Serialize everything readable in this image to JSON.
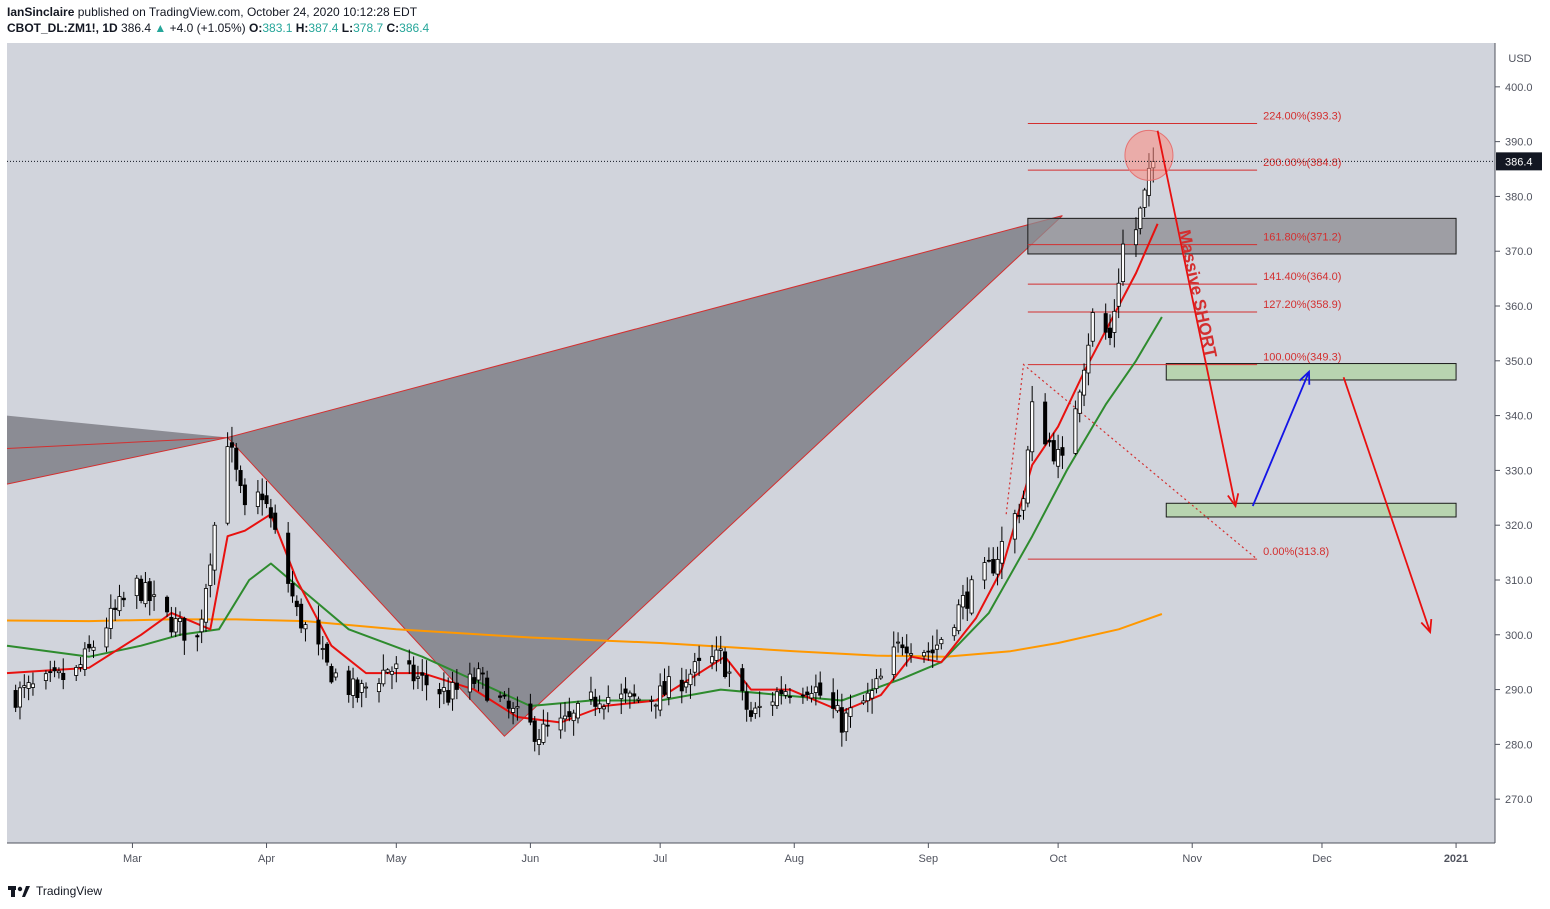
{
  "header": {
    "author": "IanSinclaire",
    "published": "published on TradingView.com, October 24, 2020 10:12:28 EDT",
    "symbol": "CBOT_DL:ZM1!, 1D",
    "last": "386.4",
    "change": "+4.0 (+1.05%)",
    "o_label": "O:",
    "o": "383.1",
    "h_label": "H:",
    "h": "387.4",
    "l_label": "L:",
    "l": "378.7",
    "c_label": "C:",
    "c": "386.4"
  },
  "footer": {
    "brand": "TradingView"
  },
  "colors": {
    "background": "#d1d4dc",
    "up_candle": "#ffffff",
    "down_candle": "#000000",
    "ema_fast": "#e8110f",
    "ema_mid": "#2e8b2e",
    "ema_slow": "#ff9800",
    "pattern_fill": "#7f7f87",
    "pattern_edge": "#d32f2f",
    "zone_green": "#b8d4b0",
    "fib": "#d32f2f",
    "short_arrow": "#e81010",
    "long_arrow": "#1414e6"
  },
  "chart_data": {
    "type": "candlestick",
    "title": "",
    "currency": "USD",
    "ylim": [
      262,
      408
    ],
    "y_ticks": [
      "270.0",
      "280.0",
      "290.0",
      "300.0",
      "310.0",
      "320.0",
      "330.0",
      "340.0",
      "350.0",
      "360.0",
      "370.0",
      "380.0",
      "390.0",
      "400.0"
    ],
    "x_ticks": [
      {
        "date": "2020-03-01",
        "label": "Mar"
      },
      {
        "date": "2020-04-01",
        "label": "Apr"
      },
      {
        "date": "2020-05-01",
        "label": "May"
      },
      {
        "date": "2020-06-01",
        "label": "Jun"
      },
      {
        "date": "2020-07-01",
        "label": "Jul"
      },
      {
        "date": "2020-08-01",
        "label": "Aug"
      },
      {
        "date": "2020-09-01",
        "label": "Sep"
      },
      {
        "date": "2020-10-01",
        "label": "Oct"
      },
      {
        "date": "2020-11-01",
        "label": "Nov"
      },
      {
        "date": "2020-12-01",
        "label": "Dec"
      },
      {
        "date": "2021-01-01",
        "label": "2021"
      }
    ],
    "x_range": [
      "2020-02-01",
      "2021-01-10"
    ],
    "last_price": 386.4,
    "close_points": [
      [
        "2020-02-03",
        289
      ],
      [
        "2020-02-10",
        291
      ],
      [
        "2020-02-17",
        293
      ],
      [
        "2020-02-24",
        302
      ],
      [
        "2020-03-02",
        309
      ],
      [
        "2020-03-09",
        303
      ],
      [
        "2020-03-16",
        299
      ],
      [
        "2020-03-20",
        320
      ],
      [
        "2020-03-23",
        336
      ],
      [
        "2020-03-27",
        322
      ],
      [
        "2020-03-31",
        326
      ],
      [
        "2020-04-03",
        318
      ],
      [
        "2020-04-08",
        304
      ],
      [
        "2020-04-15",
        294
      ],
      [
        "2020-04-22",
        289
      ],
      [
        "2020-04-29",
        294
      ],
      [
        "2020-05-06",
        292
      ],
      [
        "2020-05-13",
        289
      ],
      [
        "2020-05-20",
        292
      ],
      [
        "2020-05-27",
        286
      ],
      [
        "2020-06-03",
        282
      ],
      [
        "2020-06-10",
        284
      ],
      [
        "2020-06-17",
        289
      ],
      [
        "2020-06-24",
        288
      ],
      [
        "2020-07-01",
        289
      ],
      [
        "2020-07-08",
        293
      ],
      [
        "2020-07-15",
        296
      ],
      [
        "2020-07-22",
        285
      ],
      [
        "2020-07-29",
        290
      ],
      [
        "2020-08-05",
        291
      ],
      [
        "2020-08-12",
        284
      ],
      [
        "2020-08-19",
        289
      ],
      [
        "2020-08-26",
        299
      ],
      [
        "2020-09-02",
        297
      ],
      [
        "2020-09-09",
        306
      ],
      [
        "2020-09-16",
        313
      ],
      [
        "2020-09-23",
        325
      ],
      [
        "2020-09-25",
        341
      ],
      [
        "2020-09-29",
        335
      ],
      [
        "2020-10-02",
        331
      ],
      [
        "2020-10-06",
        346
      ],
      [
        "2020-10-09",
        358
      ],
      [
        "2020-10-13",
        354
      ],
      [
        "2020-10-16",
        371
      ],
      [
        "2020-10-19",
        374
      ],
      [
        "2020-10-21",
        380
      ],
      [
        "2020-10-23",
        386.4
      ]
    ],
    "series": [
      {
        "name": "",
        "role": "ema_fast",
        "points": [
          [
            "2020-02-01",
            293
          ],
          [
            "2020-02-20",
            294
          ],
          [
            "2020-03-03",
            300
          ],
          [
            "2020-03-10",
            304
          ],
          [
            "2020-03-19",
            301
          ],
          [
            "2020-03-23",
            318
          ],
          [
            "2020-03-27",
            319
          ],
          [
            "2020-04-02",
            322
          ],
          [
            "2020-04-08",
            310
          ],
          [
            "2020-04-16",
            298
          ],
          [
            "2020-04-24",
            293
          ],
          [
            "2020-05-07",
            293
          ],
          [
            "2020-05-19",
            290
          ],
          [
            "2020-05-29",
            285
          ],
          [
            "2020-06-08",
            284
          ],
          [
            "2020-06-18",
            287
          ],
          [
            "2020-06-30",
            288
          ],
          [
            "2020-07-08",
            292
          ],
          [
            "2020-07-16",
            296
          ],
          [
            "2020-07-22",
            290
          ],
          [
            "2020-07-31",
            290
          ],
          [
            "2020-08-12",
            286
          ],
          [
            "2020-08-21",
            289
          ],
          [
            "2020-08-28",
            296
          ],
          [
            "2020-09-04",
            295
          ],
          [
            "2020-09-12",
            303
          ],
          [
            "2020-09-18",
            312
          ],
          [
            "2020-09-25",
            331
          ],
          [
            "2020-10-01",
            338
          ],
          [
            "2020-10-07",
            348
          ],
          [
            "2020-10-13",
            357
          ],
          [
            "2020-10-19",
            366
          ],
          [
            "2020-10-24",
            375
          ]
        ]
      },
      {
        "name": "",
        "role": "ema_mid",
        "points": [
          [
            "2020-02-01",
            298
          ],
          [
            "2020-02-20",
            296
          ],
          [
            "2020-03-03",
            298
          ],
          [
            "2020-03-12",
            300
          ],
          [
            "2020-03-21",
            301
          ],
          [
            "2020-03-28",
            310
          ],
          [
            "2020-04-02",
            313
          ],
          [
            "2020-04-08",
            309
          ],
          [
            "2020-04-20",
            301
          ],
          [
            "2020-05-07",
            296
          ],
          [
            "2020-05-21",
            291
          ],
          [
            "2020-06-01",
            287
          ],
          [
            "2020-06-15",
            288
          ],
          [
            "2020-07-01",
            288
          ],
          [
            "2020-07-15",
            290
          ],
          [
            "2020-07-29",
            289
          ],
          [
            "2020-08-12",
            288
          ],
          [
            "2020-08-26",
            292
          ],
          [
            "2020-09-04",
            295
          ],
          [
            "2020-09-15",
            304
          ],
          [
            "2020-09-25",
            318
          ],
          [
            "2020-10-03",
            330
          ],
          [
            "2020-10-12",
            342
          ],
          [
            "2020-10-19",
            350
          ],
          [
            "2020-10-25",
            358
          ]
        ]
      },
      {
        "name": "",
        "role": "ema_slow",
        "points": [
          [
            "2020-02-01",
            302.6
          ],
          [
            "2020-02-20",
            302.5
          ],
          [
            "2020-03-10",
            302.8
          ],
          [
            "2020-03-25",
            302.8
          ],
          [
            "2020-04-10",
            302.5
          ],
          [
            "2020-05-01",
            301
          ],
          [
            "2020-06-01",
            299.5
          ],
          [
            "2020-07-01",
            298.5
          ],
          [
            "2020-08-01",
            297
          ],
          [
            "2020-08-20",
            296.2
          ],
          [
            "2020-09-05",
            296
          ],
          [
            "2020-09-20",
            297
          ],
          [
            "2020-10-01",
            298.5
          ],
          [
            "2020-10-15",
            301
          ],
          [
            "2020-10-25",
            303.8
          ]
        ]
      }
    ],
    "pattern": {
      "points": [
        [
          "2020-02-01",
          334
        ],
        [
          "2020-02-01",
          327.5
        ],
        [
          "2020-03-23",
          336
        ],
        [
          "2020-05-26",
          281.5
        ],
        [
          "2020-10-02",
          376.5
        ]
      ],
      "fill_left": [
        [
          "2020-02-01",
          340
        ],
        [
          "2020-03-23",
          336
        ],
        [
          "2020-02-01",
          327.5
        ]
      ],
      "fill_main": [
        [
          "2020-03-23",
          336
        ],
        [
          "2020-10-02",
          376.5
        ],
        [
          "2020-05-26",
          281.5
        ]
      ]
    },
    "zones": [
      {
        "name": "prz",
        "x": [
          "2020-09-24",
          "2021-01-01"
        ],
        "y": [
          369.5,
          376
        ]
      },
      {
        "name": "target-upper",
        "x": [
          "2020-10-26",
          "2021-01-01"
        ],
        "y": [
          346.5,
          349.5
        ]
      },
      {
        "name": "target-lower",
        "x": [
          "2020-10-26",
          "2021-01-01"
        ],
        "y": [
          321.5,
          324
        ]
      }
    ],
    "fib_levels": [
      {
        "label": "224.00%(393.3)",
        "value": 393.3
      },
      {
        "label": "200.00%(384.8)",
        "value": 384.8
      },
      {
        "label": "161.80%(371.2)",
        "value": 371.2
      },
      {
        "label": "141.40%(364.0)",
        "value": 364.0
      },
      {
        "label": "127.20%(358.9)",
        "value": 358.9
      },
      {
        "label": "100.00%(349.3)",
        "value": 349.3
      },
      {
        "label": "0.00%(313.8)",
        "value": 313.8
      }
    ],
    "fib_x": [
      "2020-09-24",
      "2020-11-16"
    ],
    "fib_diagonal": [
      [
        "2020-09-19",
        322
      ],
      [
        "2020-09-23",
        349.3
      ],
      [
        "2020-11-16",
        313.8
      ]
    ],
    "highlight_circle": {
      "date": "2020-10-22",
      "value": 387.5
    },
    "annotation_text": "Massive SHORT",
    "annotation_anchor": [
      "2020-11-01",
      362
    ],
    "arrows": [
      {
        "role": "short",
        "from": [
          "2020-10-24",
          392
        ],
        "to": [
          "2020-11-11",
          323.5
        ]
      },
      {
        "role": "long",
        "from": [
          "2020-11-15",
          323.5
        ],
        "to": [
          "2020-11-28",
          348
        ]
      },
      {
        "role": "short",
        "from": [
          "2020-12-06",
          347
        ],
        "to": [
          "2020-12-26",
          300.5
        ]
      }
    ]
  }
}
